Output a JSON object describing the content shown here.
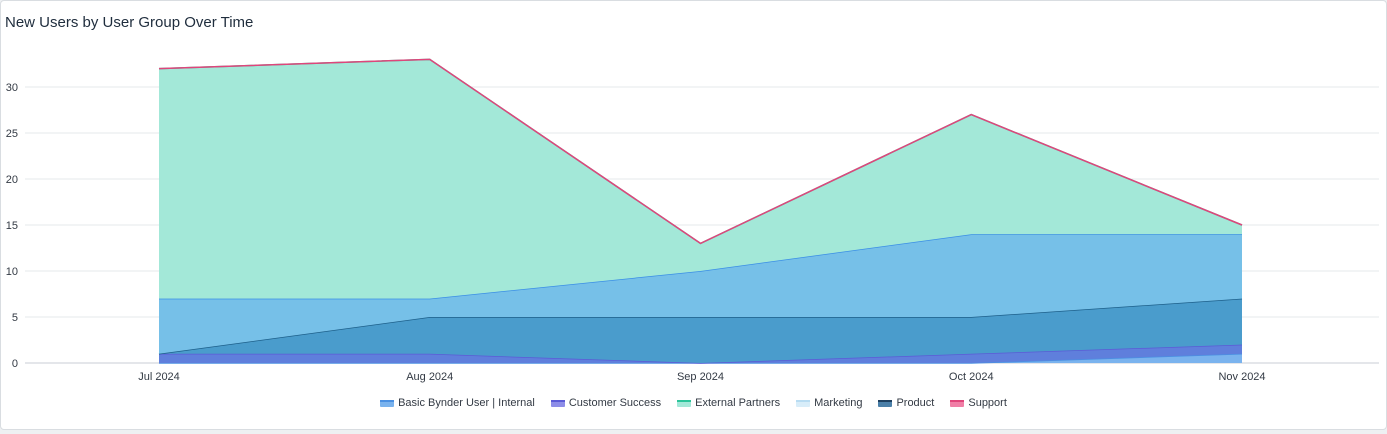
{
  "title": "New Users by User Group Over Time",
  "chart_data": {
    "type": "area",
    "stacked": true,
    "title": "New Users by User Group Over Time",
    "xlabel": "",
    "ylabel": "",
    "categories": [
      "Jul 2024",
      "Aug 2024",
      "Sep 2024",
      "Oct 2024",
      "Nov 2024"
    ],
    "ylim": [
      0,
      35
    ],
    "yticks": [
      0,
      5,
      10,
      15,
      20,
      25,
      30
    ],
    "grid": true,
    "legend_position": "bottom",
    "series": [
      {
        "name": "Basic Bynder User | Internal",
        "values": [
          0,
          0,
          0,
          0,
          1
        ],
        "color": "#4a90e2",
        "fill": "#7ab3ee"
      },
      {
        "name": "Customer Success",
        "values": [
          1,
          1,
          0,
          1,
          1
        ],
        "color": "#5b5bd6",
        "fill": "#5f7fdc"
      },
      {
        "name": "Product",
        "values": [
          0,
          4,
          5,
          4,
          5
        ],
        "color": "#1d5f8a",
        "fill": "#4a9ccc"
      },
      {
        "name": "Marketing",
        "values": [
          6,
          2,
          5,
          9,
          7
        ],
        "color": "#3a8ee6",
        "fill": "#76c0e8"
      },
      {
        "name": "External Partners",
        "values": [
          25,
          26,
          3,
          13,
          1
        ],
        "color": "#2bc49a",
        "fill": "#a3e8d8"
      },
      {
        "name": "Support",
        "values": [
          0,
          0,
          0,
          0,
          0
        ],
        "color": "#e0457b",
        "fill": "#f07ea6"
      }
    ]
  },
  "legend": [
    {
      "label": "Basic Bynder User | Internal",
      "color": "#4a90e2",
      "fill": "#7ab3ee"
    },
    {
      "label": "Customer Success",
      "color": "#5b5bd6",
      "fill": "#8d8de8"
    },
    {
      "label": "External Partners",
      "color": "#2bc49a",
      "fill": "#a3e8d8"
    },
    {
      "label": "Marketing",
      "color": "#b8dcf2",
      "fill": "#d8edf9"
    },
    {
      "label": "Product",
      "color": "#1d3f5f",
      "fill": "#4a7fa8"
    },
    {
      "label": "Support",
      "color": "#e0457b",
      "fill": "#f07ea6"
    }
  ]
}
